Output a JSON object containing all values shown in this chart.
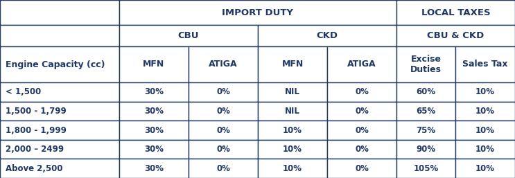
{
  "header_row1_labels": [
    "IMPORT DUTY",
    "LOCAL TAXES"
  ],
  "header_row2_labels": [
    "CBU",
    "CKD",
    "CBU & CKD"
  ],
  "header_row3_labels": [
    "Engine Capacity (cc)",
    "MFN",
    "ATIGA",
    "MFN",
    "ATIGA",
    "Excise\nDuties",
    "Sales Tax"
  ],
  "rows": [
    [
      "< 1,500",
      "30%",
      "0%",
      "NIL",
      "0%",
      "60%",
      "10%"
    ],
    [
      "1,500 - 1,799",
      "30%",
      "0%",
      "NIL",
      "0%",
      "65%",
      "10%"
    ],
    [
      "1,800 - 1,999",
      "30%",
      "0%",
      "10%",
      "0%",
      "75%",
      "10%"
    ],
    [
      "2,000 – 2499",
      "30%",
      "0%",
      "10%",
      "0%",
      "90%",
      "10%"
    ],
    [
      "Above 2,500",
      "30%",
      "0%",
      "10%",
      "0%",
      "105%",
      "10%"
    ]
  ],
  "text_color": "#1f3864",
  "border_color": "#1f3864",
  "background_color": "#ffffff",
  "fig_width": 7.43,
  "fig_height": 2.57,
  "dpi": 100
}
